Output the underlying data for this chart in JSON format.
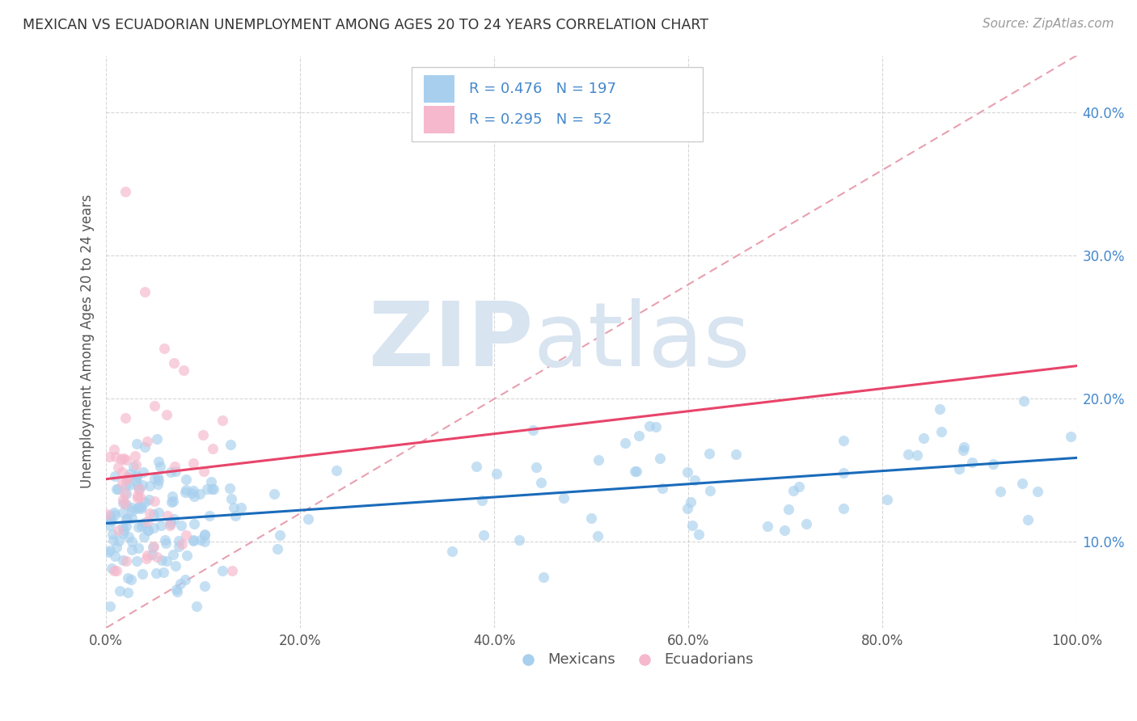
{
  "title": "MEXICAN VS ECUADORIAN UNEMPLOYMENT AMONG AGES 20 TO 24 YEARS CORRELATION CHART",
  "source": "Source: ZipAtlas.com",
  "ylabel": "Unemployment Among Ages 20 to 24 years",
  "legend_blue_R": "R = 0.476",
  "legend_blue_N": "N = 197",
  "legend_pink_R": "R = 0.295",
  "legend_pink_N": "N =  52",
  "legend_label1": "Mexicans",
  "legend_label2": "Ecuadorians",
  "xlim": [
    0.0,
    1.0
  ],
  "ylim": [
    0.04,
    0.44
  ],
  "xticks": [
    0.0,
    0.2,
    0.4,
    0.6,
    0.8,
    1.0
  ],
  "yticks": [
    0.1,
    0.2,
    0.3,
    0.4
  ],
  "blue_color": "#a8d0ee",
  "pink_color": "#f5b8cc",
  "blue_line_color": "#1a6bba",
  "pink_line_color": "#e8446a",
  "diag_line_color": "#e8a0b0",
  "watermark_main": "ZIP",
  "watermark_sub": "atlas",
  "watermark_color": "#d8e4f0",
  "background_color": "#ffffff",
  "grid_color": "#cccccc",
  "tick_color": "#4488cc",
  "N_blue": 197,
  "N_pink": 52
}
